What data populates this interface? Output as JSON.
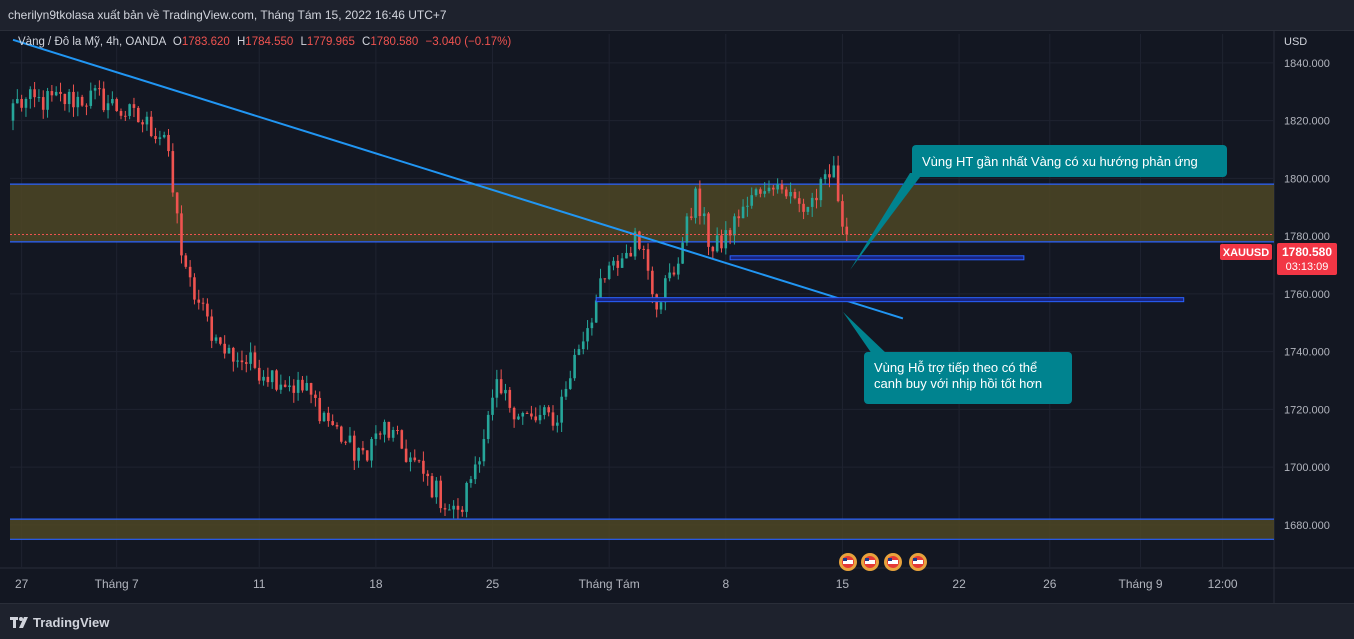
{
  "header": {
    "publisher_line": "cherilyn9tkolasa xuất bản về TradingView.com, Tháng Tám 15, 2022 16:46 UTC+7"
  },
  "footer": {
    "brand": "TradingView"
  },
  "colors": {
    "background": "#131722",
    "grid": "#1f2330",
    "up": "#26a69a",
    "down": "#ef5350",
    "zone_fill": "#4e4624",
    "zone_border": "#2962ff",
    "trendline": "#2196f3",
    "callout_bg": "#00838f",
    "price_label": "#f23645"
  },
  "chart_data": {
    "type": "candlestick",
    "symbol_line": {
      "name": "Vàng / Đô la Mỹ, 4h, OANDA",
      "o_label": "O",
      "o_value": "1783.620",
      "h_label": "H",
      "h_value": "1784.550",
      "l_label": "L",
      "l_value": "1779.965",
      "c_label": "C",
      "c_value": "1780.580",
      "change": "−3.040 (−0.17%)"
    },
    "currency_label": "USD",
    "y_ticks": [
      "1840.000",
      "1820.000",
      "1800.000",
      "1780.000",
      "1760.000",
      "1740.000",
      "1720.000",
      "1700.000",
      "1680.000"
    ],
    "y_tick_values": [
      1840,
      1820,
      1800,
      1780,
      1760,
      1740,
      1720,
      1700,
      1680
    ],
    "ylim": [
      1672,
      1850
    ],
    "x_ticks": [
      {
        "label": "27",
        "bar": 2
      },
      {
        "label": "Tháng 7",
        "bar": 24
      },
      {
        "label": "11",
        "bar": 57
      },
      {
        "label": "18",
        "bar": 84
      },
      {
        "label": "25",
        "bar": 111
      },
      {
        "label": "Tháng Tám",
        "bar": 138
      },
      {
        "label": "8",
        "bar": 165
      },
      {
        "label": "15",
        "bar": 192
      },
      {
        "label": "22",
        "bar": 219
      },
      {
        "label": "26",
        "bar": 240
      },
      {
        "label": "Tháng 9",
        "bar": 261
      },
      {
        "label": "12:00",
        "bar": 280
      }
    ],
    "price_label": {
      "symbol": "XAUUSD",
      "price": "1780.580",
      "countdown": "03:13:09",
      "value": 1780.58
    },
    "zones": [
      {
        "low": 1778,
        "high": 1798
      },
      {
        "low": 1675,
        "high": 1682
      }
    ],
    "support_lines": [
      {
        "price": 1772.5,
        "start_bar": 166,
        "end_bar": 234
      },
      {
        "price": 1758,
        "start_bar": 135,
        "end_bar": 271
      }
    ],
    "trendline": {
      "start": {
        "bar": 0,
        "price": 1848
      },
      "end": {
        "bar": 206,
        "price": 1751.5
      }
    },
    "annotations": [
      {
        "text": "Vùng HT gần nhất Vàng có xu hướng phản ứng"
      },
      {
        "text": "Vùng Hỗ trợ tiếp theo có thể canh buy với nhịp hồi tốt hơn"
      }
    ],
    "anchors": [
      {
        "bar": 20,
        "price": 1828
      },
      {
        "bar": 35,
        "price": 1815
      },
      {
        "bar": 40,
        "price": 1766
      },
      {
        "bar": 48,
        "price": 1741
      },
      {
        "bar": 68,
        "price": 1726
      },
      {
        "bar": 80,
        "price": 1703
      },
      {
        "bar": 86,
        "price": 1714
      },
      {
        "bar": 103,
        "price": 1682
      },
      {
        "bar": 112,
        "price": 1726
      },
      {
        "bar": 120,
        "price": 1716
      },
      {
        "bar": 126,
        "price": 1718
      },
      {
        "bar": 131,
        "price": 1742
      },
      {
        "bar": 137,
        "price": 1765
      },
      {
        "bar": 145,
        "price": 1780
      },
      {
        "bar": 149,
        "price": 1758
      },
      {
        "bar": 153,
        "price": 1768
      },
      {
        "bar": 158,
        "price": 1793
      },
      {
        "bar": 162,
        "price": 1774
      },
      {
        "bar": 168,
        "price": 1786
      },
      {
        "bar": 175,
        "price": 1801
      },
      {
        "bar": 183,
        "price": 1789
      },
      {
        "bar": 190,
        "price": 1801
      },
      {
        "bar": 193,
        "price": 1780.6
      }
    ],
    "last_bar": 193
  }
}
